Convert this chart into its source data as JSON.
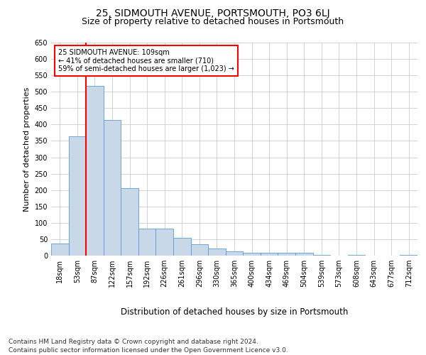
{
  "title": "25, SIDMOUTH AVENUE, PORTSMOUTH, PO3 6LJ",
  "subtitle": "Size of property relative to detached houses in Portsmouth",
  "xlabel": "Distribution of detached houses by size in Portsmouth",
  "ylabel": "Number of detached properties",
  "bar_color": "#c8d8e8",
  "bar_edge_color": "#5b9bd5",
  "categories": [
    "18sqm",
    "53sqm",
    "87sqm",
    "122sqm",
    "157sqm",
    "192sqm",
    "226sqm",
    "261sqm",
    "296sqm",
    "330sqm",
    "365sqm",
    "400sqm",
    "434sqm",
    "469sqm",
    "504sqm",
    "539sqm",
    "573sqm",
    "608sqm",
    "643sqm",
    "677sqm",
    "712sqm"
  ],
  "values": [
    37,
    365,
    518,
    413,
    205,
    83,
    83,
    55,
    35,
    22,
    12,
    8,
    8,
    8,
    8,
    3,
    0,
    3,
    0,
    0,
    3
  ],
  "vline_x_index": 2,
  "vline_color": "red",
  "annotation_text": "25 SIDMOUTH AVENUE: 109sqm\n← 41% of detached houses are smaller (710)\n59% of semi-detached houses are larger (1,023) →",
  "annotation_box_color": "white",
  "annotation_box_edge_color": "red",
  "ylim": [
    0,
    650
  ],
  "yticks": [
    0,
    50,
    100,
    150,
    200,
    250,
    300,
    350,
    400,
    450,
    500,
    550,
    600,
    650
  ],
  "footer1": "Contains HM Land Registry data © Crown copyright and database right 2024.",
  "footer2": "Contains public sector information licensed under the Open Government Licence v3.0.",
  "bg_color": "#ffffff",
  "grid_color": "#cccccc",
  "title_fontsize": 10,
  "subtitle_fontsize": 9,
  "tick_fontsize": 7,
  "ylabel_fontsize": 8,
  "xlabel_fontsize": 8.5,
  "annotation_fontsize": 7,
  "footer_fontsize": 6.5
}
